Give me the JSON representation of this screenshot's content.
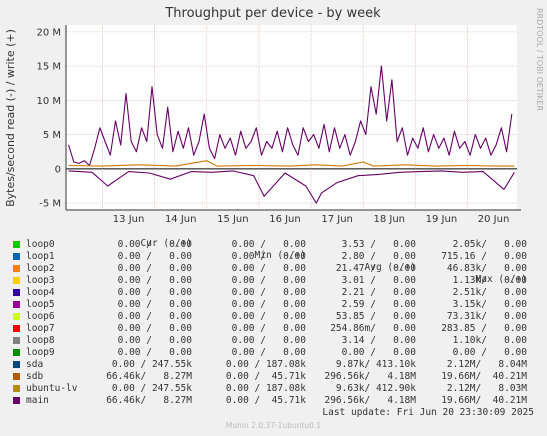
{
  "chart_data": {
    "type": "line",
    "title": "Throughput per device - by week",
    "ylabel": "Bytes/second read (-) / write (+)",
    "side_label": "RRDTOOL / TOBI OETIKER",
    "ylim": [
      -6000000,
      21000000
    ],
    "y_ticks": [
      {
        "value": -5000000,
        "label": "-5 M"
      },
      {
        "value": 0,
        "label": "0"
      },
      {
        "value": 5000000,
        "label": "5 M"
      },
      {
        "value": 10000000,
        "label": "10 M"
      },
      {
        "value": 15000000,
        "label": "15 M"
      },
      {
        "value": 20000000,
        "label": "20 M"
      }
    ],
    "x_range_days": [
      12.3,
      20.95
    ],
    "x_ticks": [
      {
        "day": 13,
        "label": "13 Jun"
      },
      {
        "day": 14,
        "label": "14 Jun"
      },
      {
        "day": 15,
        "label": "15 Jun"
      },
      {
        "day": 16,
        "label": "16 Jun"
      },
      {
        "day": 17,
        "label": "17 Jun"
      },
      {
        "day": 18,
        "label": "18 Jun"
      },
      {
        "day": 19,
        "label": "19 Jun"
      },
      {
        "day": 20,
        "label": "20 Jun"
      }
    ],
    "grid": true,
    "series": [
      {
        "name": "main",
        "color": "#660066",
        "direction": "write",
        "points": [
          [
            12.35,
            3.5
          ],
          [
            12.45,
            1.0
          ],
          [
            12.55,
            0.8
          ],
          [
            12.65,
            1.2
          ],
          [
            12.75,
            0.5
          ],
          [
            12.85,
            3.0
          ],
          [
            12.95,
            6.0
          ],
          [
            13.05,
            4.0
          ],
          [
            13.15,
            2.0
          ],
          [
            13.25,
            7.0
          ],
          [
            13.35,
            3.5
          ],
          [
            13.45,
            11.0
          ],
          [
            13.55,
            4.0
          ],
          [
            13.65,
            2.5
          ],
          [
            13.75,
            6.0
          ],
          [
            13.85,
            4.0
          ],
          [
            13.95,
            12.0
          ],
          [
            14.05,
            5.0
          ],
          [
            14.15,
            3.0
          ],
          [
            14.25,
            9.0
          ],
          [
            14.35,
            2.5
          ],
          [
            14.45,
            5.5
          ],
          [
            14.55,
            3.0
          ],
          [
            14.65,
            6.0
          ],
          [
            14.75,
            2.0
          ],
          [
            14.85,
            4.0
          ],
          [
            14.95,
            8.0
          ],
          [
            15.05,
            3.0
          ],
          [
            15.15,
            1.5
          ],
          [
            15.25,
            5.0
          ],
          [
            15.35,
            3.0
          ],
          [
            15.45,
            4.5
          ],
          [
            15.55,
            2.0
          ],
          [
            15.65,
            5.5
          ],
          [
            15.75,
            3.0
          ],
          [
            15.85,
            4.0
          ],
          [
            15.95,
            6.0
          ],
          [
            16.05,
            2.0
          ],
          [
            16.15,
            4.0
          ],
          [
            16.25,
            3.0
          ],
          [
            16.35,
            5.5
          ],
          [
            16.45,
            2.5
          ],
          [
            16.55,
            6.0
          ],
          [
            16.65,
            3.5
          ],
          [
            16.75,
            2.0
          ],
          [
            16.85,
            6.0
          ],
          [
            16.95,
            4.0
          ],
          [
            17.05,
            5.0
          ],
          [
            17.15,
            3.0
          ],
          [
            17.25,
            6.5
          ],
          [
            17.35,
            2.5
          ],
          [
            17.45,
            6.0
          ],
          [
            17.55,
            3.0
          ],
          [
            17.65,
            5.0
          ],
          [
            17.75,
            2.0
          ],
          [
            17.85,
            4.0
          ],
          [
            17.95,
            7.0
          ],
          [
            18.05,
            5.0
          ],
          [
            18.15,
            12.0
          ],
          [
            18.25,
            8.0
          ],
          [
            18.35,
            15.0
          ],
          [
            18.45,
            7.0
          ],
          [
            18.55,
            13.0
          ],
          [
            18.65,
            4.0
          ],
          [
            18.75,
            6.0
          ],
          [
            18.85,
            2.0
          ],
          [
            18.95,
            4.5
          ],
          [
            19.05,
            3.0
          ],
          [
            19.15,
            6.0
          ],
          [
            19.25,
            2.5
          ],
          [
            19.35,
            5.0
          ],
          [
            19.45,
            3.0
          ],
          [
            19.55,
            4.5
          ],
          [
            19.65,
            2.0
          ],
          [
            19.75,
            5.5
          ],
          [
            19.85,
            3.0
          ],
          [
            19.95,
            4.0
          ],
          [
            20.05,
            2.0
          ],
          [
            20.15,
            5.0
          ],
          [
            20.25,
            3.0
          ],
          [
            20.35,
            4.5
          ],
          [
            20.45,
            2.0
          ],
          [
            20.55,
            3.5
          ],
          [
            20.65,
            6.0
          ],
          [
            20.75,
            2.5
          ],
          [
            20.85,
            8.0
          ]
        ]
      },
      {
        "name": "main",
        "color": "#660066",
        "direction": "read",
        "points": [
          [
            12.35,
            -0.3
          ],
          [
            12.8,
            -0.5
          ],
          [
            13.1,
            -2.5
          ],
          [
            13.5,
            -0.4
          ],
          [
            13.9,
            -0.6
          ],
          [
            14.3,
            -1.5
          ],
          [
            14.7,
            -0.4
          ],
          [
            15.1,
            -0.5
          ],
          [
            15.5,
            -0.3
          ],
          [
            15.9,
            -1.0
          ],
          [
            16.1,
            -4.0
          ],
          [
            16.5,
            -0.6
          ],
          [
            16.9,
            -2.5
          ],
          [
            17.1,
            -5.0
          ],
          [
            17.2,
            -3.5
          ],
          [
            17.5,
            -2.0
          ],
          [
            17.9,
            -1.0
          ],
          [
            18.3,
            -0.8
          ],
          [
            18.7,
            -0.5
          ],
          [
            19.1,
            -0.4
          ],
          [
            19.5,
            -0.3
          ],
          [
            19.9,
            -0.5
          ],
          [
            20.3,
            -0.4
          ],
          [
            20.7,
            -3.0
          ],
          [
            20.9,
            -0.5
          ]
        ]
      },
      {
        "name": "ubuntu-lv",
        "color": "#cc7700",
        "direction": "write",
        "points": [
          [
            12.35,
            0.5
          ],
          [
            13.0,
            0.4
          ],
          [
            13.7,
            0.6
          ],
          [
            14.4,
            0.4
          ],
          [
            15.0,
            1.2
          ],
          [
            15.2,
            0.4
          ],
          [
            15.9,
            0.5
          ],
          [
            16.6,
            0.4
          ],
          [
            17.1,
            0.6
          ],
          [
            17.6,
            0.4
          ],
          [
            18.0,
            1.0
          ],
          [
            18.2,
            0.4
          ],
          [
            18.8,
            0.6
          ],
          [
            19.4,
            0.4
          ],
          [
            20.0,
            0.5
          ],
          [
            20.6,
            0.4
          ],
          [
            20.9,
            0.4
          ]
        ]
      }
    ]
  },
  "legend": {
    "headers": {
      "cur": "Cur (-/+)",
      "min": "Min (-/+)",
      "avg": "Avg (-/+)",
      "max": "Max (-/+)"
    },
    "rows": [
      {
        "name": "loop0",
        "color": "#00cc00",
        "cur": "0.00 /   0.00",
        "min": "0.00 /   0.00",
        "avg": "3.53 /   0.00",
        "max": "2.05k/   0.00"
      },
      {
        "name": "loop1",
        "color": "#0066b3",
        "cur": "0.00 /   0.00",
        "min": "0.00 /   0.00",
        "avg": "2.80 /   0.00",
        "max": "715.16 /   0.00"
      },
      {
        "name": "loop2",
        "color": "#ff8000",
        "cur": "0.00 /   0.00",
        "min": "0.00 /   0.00",
        "avg": "21.47 /   0.00",
        "max": "46.83k/   0.00"
      },
      {
        "name": "loop3",
        "color": "#ffcc00",
        "cur": "0.00 /   0.00",
        "min": "0.00 /   0.00",
        "avg": "3.01 /   0.00",
        "max": "1.13k/   0.00"
      },
      {
        "name": "loop4",
        "color": "#330099",
        "cur": "0.00 /   0.00",
        "min": "0.00 /   0.00",
        "avg": "2.21 /   0.00",
        "max": "2.51k/   0.00"
      },
      {
        "name": "loop5",
        "color": "#990099",
        "cur": "0.00 /   0.00",
        "min": "0.00 /   0.00",
        "avg": "2.59 /   0.00",
        "max": "3.15k/   0.00"
      },
      {
        "name": "loop6",
        "color": "#ccff00",
        "cur": "0.00 /   0.00",
        "min": "0.00 /   0.00",
        "avg": "53.85 /   0.00",
        "max": "73.31k/   0.00"
      },
      {
        "name": "loop7",
        "color": "#ff0000",
        "cur": "0.00 /   0.00",
        "min": "0.00 /   0.00",
        "avg": "254.86m/   0.00",
        "max": "283.85 /   0.00"
      },
      {
        "name": "loop8",
        "color": "#808080",
        "cur": "0.00 /   0.00",
        "min": "0.00 /   0.00",
        "avg": "3.14 /   0.00",
        "max": "1.10k/   0.00"
      },
      {
        "name": "loop9",
        "color": "#008f00",
        "cur": "0.00 /   0.00",
        "min": "0.00 /   0.00",
        "avg": "0.00 /   0.00",
        "max": "0.00 /   0.00"
      },
      {
        "name": "sda",
        "color": "#00487d",
        "cur": "0.00 / 247.55k",
        "min": "0.00 / 187.08k",
        "avg": "9.87k/ 413.10k",
        "max": "2.12M/   8.04M"
      },
      {
        "name": "sdb",
        "color": "#b35a00",
        "cur": "66.46k/   8.27M",
        "min": "0.00 /  45.71k",
        "avg": "296.56k/   4.18M",
        "max": "19.66M/  40.21M"
      },
      {
        "name": "ubuntu-lv",
        "color": "#b38f00",
        "cur": "0.00 / 247.55k",
        "min": "0.00 / 187.08k",
        "avg": "9.63k/ 412.90k",
        "max": "2.12M/   8.03M"
      },
      {
        "name": "main",
        "color": "#6b006b",
        "cur": "66.46k/   8.27M",
        "min": "0.00 /  45.71k",
        "avg": "296.56k/   4.18M",
        "max": "19.66M/  40.21M"
      }
    ]
  },
  "last_update": "Last update: Fri Jun 20 23:30:09 2025",
  "footer": "Munin 2.0.37-1ubuntu0.1"
}
